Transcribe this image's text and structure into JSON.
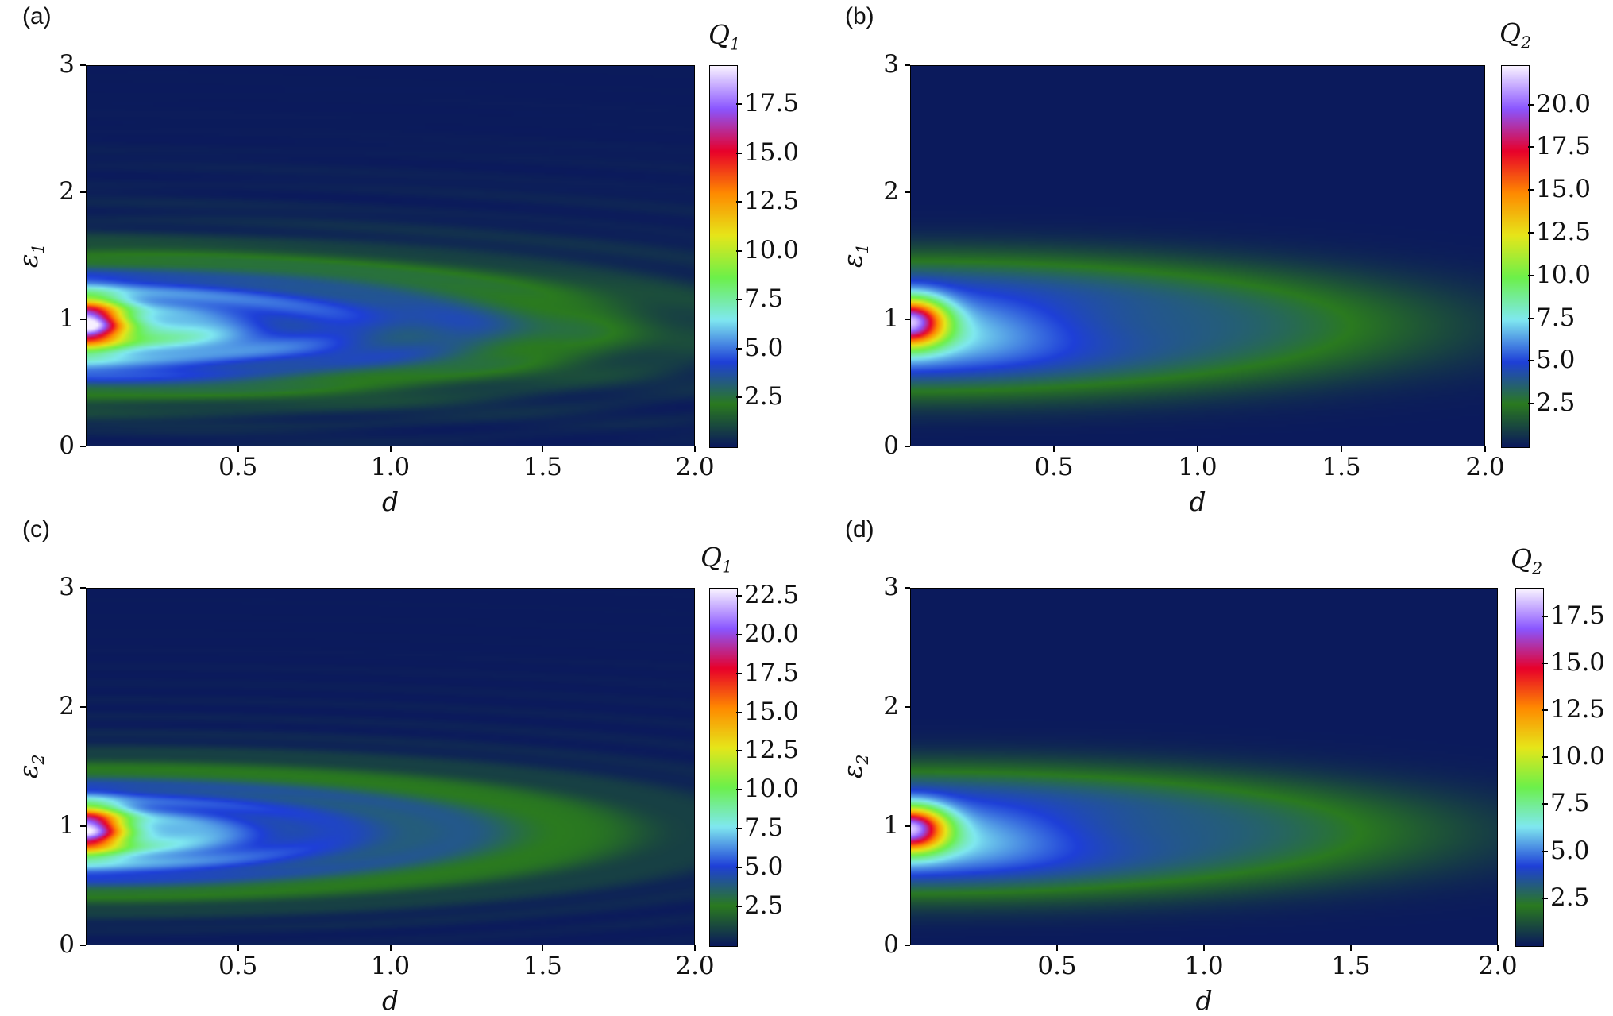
{
  "chart_data": [
    {
      "type": "heatmap",
      "panel_label": "(a)",
      "xlabel": "d",
      "ylabel": "ε",
      "ylabel_sub": "1",
      "colorbar_label": "Q",
      "colorbar_sub": "1",
      "xlim": [
        0,
        2.0
      ],
      "ylim": [
        0,
        3
      ],
      "xticks": [
        "0.5",
        "1.0",
        "1.5",
        "2.0"
      ],
      "yticks": [
        "0",
        "1",
        "2",
        "3"
      ],
      "colorbar_range": [
        0.0,
        19.5
      ],
      "colorbar_ticks": [
        "2.5",
        "5.0",
        "7.5",
        "10.0",
        "12.5",
        "15.0",
        "17.5"
      ],
      "colormap": [
        "#0b1a5c",
        "#2a7a1f",
        "#1e3fd8",
        "#7fe8f0",
        "#6cf04a",
        "#e6e61a",
        "#ff8a00",
        "#e8002a",
        "#8a55ff",
        "#f7f0ff"
      ],
      "peak": {
        "d": 0.05,
        "epsilon": 1.0,
        "value": 18.5
      },
      "rings": 3
    },
    {
      "type": "heatmap",
      "panel_label": "(b)",
      "xlabel": "d",
      "ylabel": "ε",
      "ylabel_sub": "1",
      "colorbar_label": "Q",
      "colorbar_sub": "2",
      "xlim": [
        0,
        2.0
      ],
      "ylim": [
        0,
        3
      ],
      "xticks": [
        "0.5",
        "1.0",
        "1.5",
        "2.0"
      ],
      "yticks": [
        "0",
        "1",
        "2",
        "3"
      ],
      "colorbar_range": [
        0.0,
        22.3
      ],
      "colorbar_ticks": [
        "2.5",
        "5.0",
        "7.5",
        "10.0",
        "12.5",
        "15.0",
        "17.5",
        "20.0"
      ],
      "colormap": [
        "#0b1a5c",
        "#2a7a1f",
        "#1e3fd8",
        "#7fe8f0",
        "#6cf04a",
        "#e6e61a",
        "#ff8a00",
        "#e8002a",
        "#8a55ff",
        "#f7f0ff"
      ],
      "peak": {
        "d": 0.05,
        "epsilon": 1.0,
        "value": 21.5
      },
      "rings": 1
    },
    {
      "type": "heatmap",
      "panel_label": "(c)",
      "xlabel": "d",
      "ylabel": "ε",
      "ylabel_sub": "2",
      "colorbar_label": "Q",
      "colorbar_sub": "1",
      "xlim": [
        0,
        2.0
      ],
      "ylim": [
        0,
        3
      ],
      "xticks": [
        "0.5",
        "1.0",
        "1.5",
        "2.0"
      ],
      "yticks": [
        "0",
        "1",
        "2",
        "3"
      ],
      "colorbar_range": [
        0.0,
        23.0
      ],
      "colorbar_ticks": [
        "2.5",
        "5.0",
        "7.5",
        "10.0",
        "12.5",
        "15.0",
        "17.5",
        "20.0",
        "22.5"
      ],
      "colormap": [
        "#0b1a5c",
        "#2a7a1f",
        "#1e3fd8",
        "#7fe8f0",
        "#6cf04a",
        "#e6e61a",
        "#ff8a00",
        "#e8002a",
        "#8a55ff",
        "#f7f0ff"
      ],
      "peak": {
        "d": 0.05,
        "epsilon": 1.0,
        "value": 22.5
      },
      "rings": 2
    },
    {
      "type": "heatmap",
      "panel_label": "(d)",
      "xlabel": "d",
      "ylabel": "ε",
      "ylabel_sub": "2",
      "colorbar_label": "Q",
      "colorbar_sub": "2",
      "xlim": [
        0,
        2.0
      ],
      "ylim": [
        0,
        3
      ],
      "xticks": [
        "0.5",
        "1.0",
        "1.5",
        "2.0"
      ],
      "yticks": [
        "0",
        "1",
        "2",
        "3"
      ],
      "colorbar_range": [
        0.0,
        19.0
      ],
      "colorbar_ticks": [
        "2.5",
        "5.0",
        "7.5",
        "10.0",
        "12.5",
        "15.0",
        "17.5"
      ],
      "colormap": [
        "#0b1a5c",
        "#2a7a1f",
        "#1e3fd8",
        "#7fe8f0",
        "#6cf04a",
        "#e6e61a",
        "#ff8a00",
        "#e8002a",
        "#8a55ff",
        "#f7f0ff"
      ],
      "peak": {
        "d": 0.05,
        "epsilon": 1.0,
        "value": 18.0
      },
      "rings": 1
    }
  ]
}
